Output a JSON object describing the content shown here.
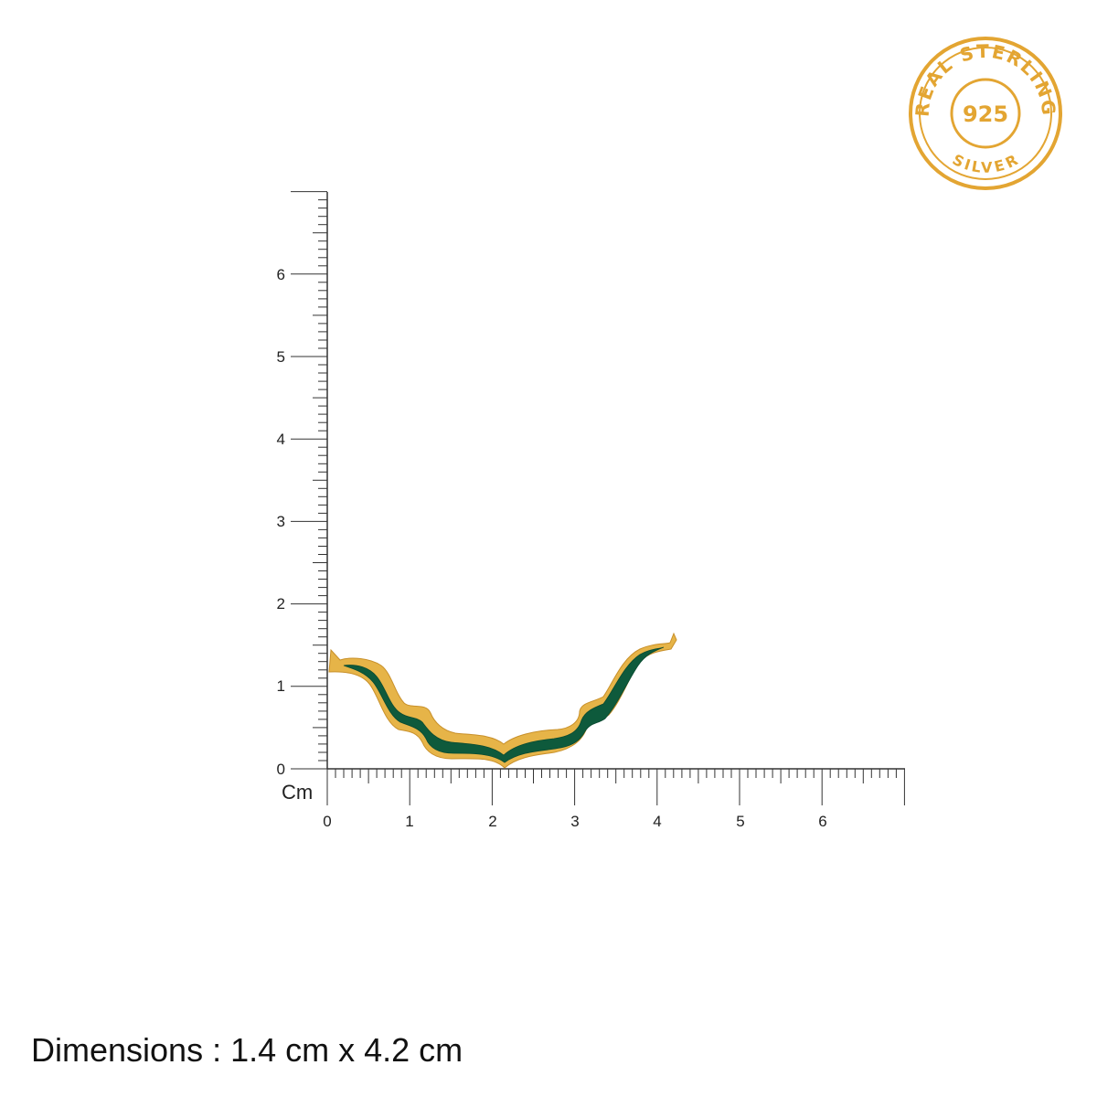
{
  "badge": {
    "top_text": "REAL STERLING",
    "center_text": "925",
    "bottom_text": "SILVER",
    "color": "#e3a532"
  },
  "ruler": {
    "unit": "Cm",
    "x_labels": [
      "0",
      "1",
      "2",
      "3",
      "4",
      "5",
      "6"
    ],
    "y_labels": [
      "0",
      "1",
      "2",
      "3",
      "4",
      "5",
      "6"
    ],
    "line_color": "#333333"
  },
  "product": {
    "name": "wave-pendant",
    "enamel_color": "#0e5a3c",
    "metal_color": "#e6b448"
  },
  "dimensions_text": "Dimensions : 1.4 cm x 4.2 cm"
}
